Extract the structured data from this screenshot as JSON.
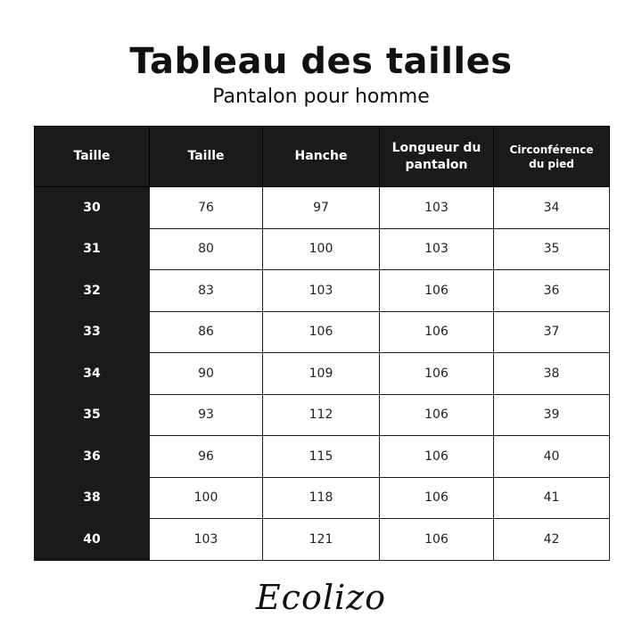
{
  "title": "Tableau des tailles",
  "subtitle": "Pantalon pour homme",
  "table": {
    "headers": [
      "Taille",
      "Taille",
      "Hanche",
      "Longueur du pantalon",
      "Circonférence du pied"
    ],
    "rows": [
      [
        "30",
        "76",
        "97",
        "103",
        "34"
      ],
      [
        "31",
        "80",
        "100",
        "103",
        "35"
      ],
      [
        "32",
        "83",
        "103",
        "106",
        "36"
      ],
      [
        "33",
        "86",
        "106",
        "106",
        "37"
      ],
      [
        "34",
        "90",
        "109",
        "106",
        "38"
      ],
      [
        "35",
        "93",
        "112",
        "106",
        "39"
      ],
      [
        "36",
        "96",
        "115",
        "106",
        "40"
      ],
      [
        "38",
        "100",
        "118",
        "106",
        "41"
      ],
      [
        "40",
        "103",
        "121",
        "106",
        "42"
      ]
    ]
  },
  "logo": "Ecolizo"
}
